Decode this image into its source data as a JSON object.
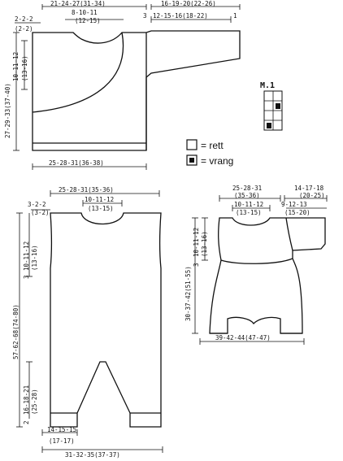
{
  "jacket": {
    "top_left": [
      "2-2-2",
      "(2-2)"
    ],
    "top_body": [
      "21-24-27(31-34)",
      "8-10-11",
      "(12-15)"
    ],
    "top_sleeve": [
      "16-19-20(22-26)",
      "12-15-16(18-22)"
    ],
    "marker_3": "3",
    "marker_1": "1",
    "left_upper": [
      "10-11-12",
      "(13-16)"
    ],
    "left_total": "27-29-33(37-40)",
    "bottom": "25-28-31(36-38)"
  },
  "legend": {
    "title": "M.1",
    "rett": "= rett",
    "vrang": "= vrang"
  },
  "overalls": {
    "top_left": [
      "3-2-2",
      "(3-2)"
    ],
    "top_total": "25-28-31(35-36)",
    "top_neck": [
      "10-11-12",
      "(13-15)"
    ],
    "left_upper_num": "3",
    "left_upper": [
      "10-11-12",
      "(13-16)"
    ],
    "left_total": "57-62-68(74-80)",
    "left_lower_num": "2",
    "left_lower": [
      "16-18-21",
      "(25-28)"
    ],
    "bottom_leg": [
      "14-15-15",
      "(17-17)"
    ],
    "bottom_total": "31-32-35(37-37)"
  },
  "romper": {
    "top_body": [
      "25-28-31",
      "(35-36)"
    ],
    "top_sleeve": [
      "14-17-18",
      "(20-25)"
    ],
    "top_neck": [
      "10-11-12",
      "(13-15)"
    ],
    "top_sleeve2": [
      "9-12-13",
      "(15-20)"
    ],
    "left_upper": [
      "10-11-12",
      "(13-16)"
    ],
    "left_upper_num": "3",
    "left_total": "30-37-42(51-55)",
    "bottom": "39-42-44(47-47)"
  }
}
